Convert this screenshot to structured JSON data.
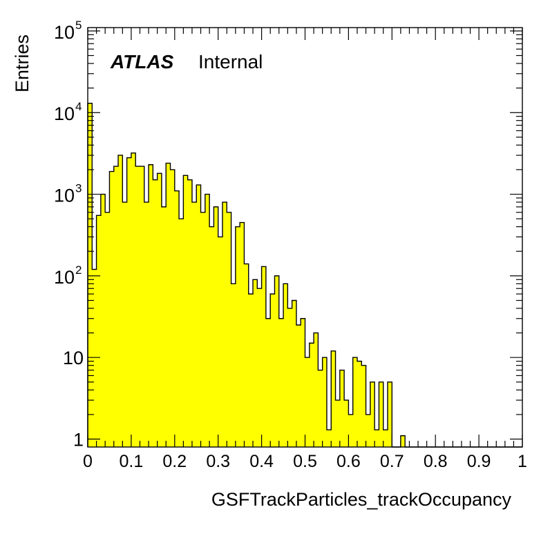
{
  "chart_data": {
    "type": "bar",
    "histogram": true,
    "xlabel": "GSFTrackParticles_trackOccupancy",
    "ylabel": "Entries",
    "xlim": [
      0,
      1
    ],
    "ylim": [
      0.8,
      110000
    ],
    "y_scale": "log",
    "grid": false,
    "x_ticks": [
      0,
      0.1,
      0.2,
      0.3,
      0.4,
      0.5,
      0.6,
      0.7,
      0.8,
      0.9,
      1
    ],
    "x_tick_labels": [
      "0",
      "0.1",
      "0.2",
      "0.3",
      "0.4",
      "0.5",
      "0.6",
      "0.7",
      "0.8",
      "0.9",
      "1"
    ],
    "y_ticks": [
      {
        "value": 1,
        "base": "1",
        "exp": ""
      },
      {
        "value": 10,
        "base": "10",
        "exp": ""
      },
      {
        "value": 100,
        "base": "10",
        "exp": "2"
      },
      {
        "value": 1000,
        "base": "10",
        "exp": "3"
      },
      {
        "value": 10000,
        "base": "10",
        "exp": "4"
      },
      {
        "value": 100000,
        "base": "10",
        "exp": "5"
      }
    ],
    "bin_width": 0.01,
    "bin_lower_edges": [
      0.0,
      0.01,
      0.02,
      0.03,
      0.04,
      0.05,
      0.06,
      0.07,
      0.08,
      0.09,
      0.1,
      0.11,
      0.12,
      0.13,
      0.14,
      0.15,
      0.16,
      0.17,
      0.18,
      0.19,
      0.2,
      0.21,
      0.22,
      0.23,
      0.24,
      0.25,
      0.26,
      0.27,
      0.28,
      0.29,
      0.3,
      0.31,
      0.32,
      0.33,
      0.34,
      0.35,
      0.36,
      0.37,
      0.38,
      0.39,
      0.4,
      0.41,
      0.42,
      0.43,
      0.44,
      0.45,
      0.46,
      0.47,
      0.48,
      0.49,
      0.5,
      0.51,
      0.52,
      0.53,
      0.54,
      0.55,
      0.56,
      0.57,
      0.58,
      0.59,
      0.6,
      0.61,
      0.62,
      0.63,
      0.64,
      0.65,
      0.66,
      0.67,
      0.68,
      0.69,
      0.7,
      0.71,
      0.72,
      0.73,
      0.74,
      0.75,
      0.76,
      0.77,
      0.78,
      0.79,
      0.8,
      0.81,
      0.82,
      0.83,
      0.84,
      0.85,
      0.86,
      0.87,
      0.88,
      0.89,
      0.9,
      0.91,
      0.92,
      0.93,
      0.94,
      0.95,
      0.96,
      0.97,
      0.98,
      0.99
    ],
    "values": [
      13000,
      120,
      550,
      1000,
      600,
      1900,
      2200,
      3000,
      800,
      2800,
      3200,
      2200,
      2200,
      800,
      2300,
      1500,
      1800,
      700,
      2400,
      2000,
      1100,
      500,
      1700,
      1500,
      800,
      1300,
      600,
      1000,
      400,
      700,
      300,
      800,
      600,
      80,
      400,
      450,
      140,
      60,
      90,
      70,
      130,
      30,
      60,
      100,
      30,
      80,
      40,
      50,
      25,
      30,
      10,
      15,
      20,
      7,
      10,
      1.3,
      12,
      3,
      7,
      3,
      2,
      10,
      9,
      8,
      2,
      5,
      1.3,
      5,
      1.3,
      5,
      0,
      0,
      1.1,
      0,
      0,
      0,
      0,
      0,
      0,
      0,
      0,
      0,
      0,
      0,
      0,
      0,
      0,
      0,
      0,
      0,
      0,
      0,
      0,
      0,
      0,
      0,
      0,
      0,
      0,
      0
    ],
    "fill_color": "#ffff00",
    "line_color": "#000000"
  },
  "annotation": {
    "atlas": "ATLAS",
    "internal": "Internal"
  }
}
